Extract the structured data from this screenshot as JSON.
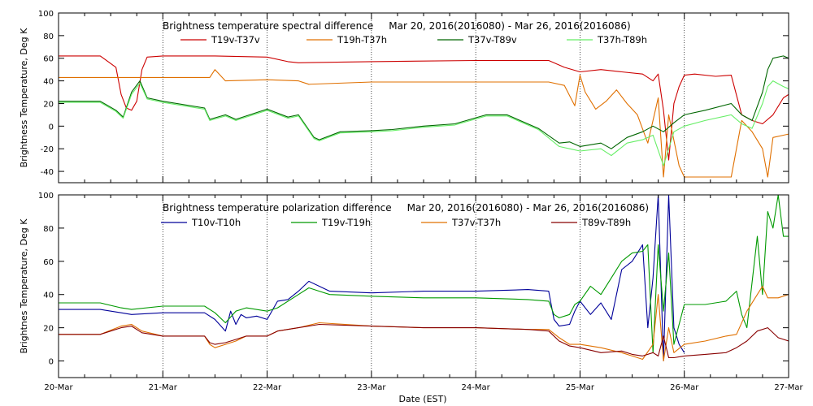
{
  "xlabel": "Date (EST)",
  "x_ticks": [
    "20-Mar",
    "21-Mar",
    "22-Mar",
    "23-Mar",
    "24-Mar",
    "25-Mar",
    "26-Mar",
    "27-Mar"
  ],
  "chart_data": [
    {
      "type": "line",
      "title": "Brightness temperature spectral difference     Mar 20, 2016(2016080) - Mar 26, 2016(2016086)",
      "xlabel": "",
      "ylabel": "Brightness Temperature, Deg K",
      "xlim": [
        0,
        7
      ],
      "ylim": [
        -50,
        100
      ],
      "yticks": [
        -40,
        -20,
        0,
        20,
        40,
        60,
        80,
        100
      ],
      "grid_x": true,
      "legend": "top-center",
      "series": [
        {
          "name": "T19v-T37v",
          "color": "#cc0000",
          "x": [
            0,
            0.4,
            0.55,
            0.6,
            0.65,
            0.7,
            0.75,
            0.8,
            0.85,
            1.0,
            1.5,
            2.0,
            2.2,
            2.3,
            3.0,
            4.0,
            4.7,
            4.85,
            5.0,
            5.2,
            5.4,
            5.6,
            5.7,
            5.75,
            5.8,
            5.85,
            5.9,
            5.95,
            6.0,
            6.1,
            6.3,
            6.45,
            6.55,
            6.65,
            6.75,
            6.85,
            6.95,
            7.0
          ],
          "values": [
            62,
            62,
            52,
            28,
            16,
            14,
            22,
            50,
            61,
            62,
            62,
            61,
            57,
            56,
            57,
            58,
            58,
            52,
            48,
            50,
            48,
            46,
            40,
            46,
            14,
            -30,
            20,
            35,
            45,
            46,
            44,
            45,
            10,
            5,
            2,
            10,
            25,
            28
          ]
        },
        {
          "name": "T19h-T37h",
          "color": "#e07000",
          "x": [
            0,
            0.55,
            1.0,
            1.45,
            1.5,
            1.6,
            2.0,
            2.3,
            2.4,
            3.0,
            4.0,
            4.7,
            4.85,
            4.95,
            5.0,
            5.05,
            5.15,
            5.25,
            5.35,
            5.45,
            5.55,
            5.65,
            5.75,
            5.8,
            5.85,
            5.95,
            6.0,
            6.2,
            6.45,
            6.55,
            6.65,
            6.75,
            6.8,
            6.85,
            6.95,
            7.0
          ],
          "values": [
            43,
            43,
            43,
            43,
            50,
            40,
            41,
            40,
            37,
            39,
            39,
            39,
            36,
            18,
            45,
            30,
            15,
            22,
            32,
            20,
            10,
            -15,
            25,
            -45,
            10,
            -35,
            -45,
            -45,
            -45,
            5,
            -5,
            -20,
            -45,
            -10,
            -8,
            -7
          ]
        },
        {
          "name": "T37v-T89v",
          "color": "#006600",
          "x": [
            0,
            0.4,
            0.55,
            0.62,
            0.7,
            0.78,
            0.85,
            1.0,
            1.4,
            1.45,
            1.6,
            1.7,
            2.0,
            2.2,
            2.3,
            2.45,
            2.5,
            2.7,
            3.0,
            3.2,
            3.5,
            3.8,
            4.1,
            4.3,
            4.6,
            4.8,
            4.9,
            5.0,
            5.2,
            5.3,
            5.45,
            5.6,
            5.7,
            5.8,
            5.9,
            6.0,
            6.2,
            6.45,
            6.55,
            6.65,
            6.75,
            6.8,
            6.85,
            6.95,
            7.0
          ],
          "values": [
            22,
            22,
            14,
            8,
            30,
            40,
            25,
            22,
            16,
            6,
            10,
            6,
            15,
            8,
            10,
            -10,
            -12,
            -5,
            -4,
            -3,
            0,
            2,
            10,
            10,
            -2,
            -15,
            -14,
            -18,
            -15,
            -20,
            -10,
            -5,
            0,
            -5,
            3,
            10,
            14,
            20,
            10,
            5,
            30,
            50,
            60,
            62,
            60
          ]
        },
        {
          "name": "T37h-T89h",
          "color": "#66ee66",
          "x": [
            0,
            0.4,
            0.55,
            0.62,
            0.7,
            0.78,
            0.85,
            1.0,
            1.4,
            1.45,
            1.6,
            1.7,
            2.0,
            2.2,
            2.3,
            2.45,
            2.5,
            2.7,
            3.0,
            3.2,
            3.5,
            3.8,
            4.1,
            4.3,
            4.6,
            4.8,
            4.9,
            5.0,
            5.2,
            5.3,
            5.45,
            5.6,
            5.7,
            5.8,
            5.9,
            6.0,
            6.2,
            6.45,
            6.55,
            6.65,
            6.75,
            6.8,
            6.85,
            6.95,
            7.0
          ],
          "values": [
            21,
            21,
            13,
            7,
            28,
            38,
            24,
            21,
            15,
            5,
            9,
            5,
            14,
            7,
            9,
            -11,
            -13,
            -6,
            -5,
            -4,
            -1,
            1,
            9,
            9,
            -3,
            -18,
            -20,
            -22,
            -20,
            -26,
            -15,
            -12,
            -8,
            -35,
            -5,
            0,
            5,
            10,
            2,
            -2,
            20,
            35,
            40,
            35,
            33
          ]
        }
      ]
    },
    {
      "type": "line",
      "title": "Brightness temperature polarization difference     Mar 20, 2016(2016080) - Mar 26, 2016(2016086)",
      "xlabel": "Date (EST)",
      "ylabel": "Brightnes Temperature, Deg K",
      "xlim": [
        0,
        7
      ],
      "ylim": [
        -10,
        100
      ],
      "yticks": [
        0,
        20,
        40,
        60,
        80,
        100
      ],
      "grid_x": true,
      "legend": "top-center",
      "series": [
        {
          "name": "T10v-T10h",
          "color": "#000099",
          "x": [
            0,
            0.4,
            0.6,
            0.7,
            1.0,
            1.4,
            1.5,
            1.6,
            1.65,
            1.7,
            1.75,
            1.8,
            1.9,
            2.0,
            2.1,
            2.2,
            2.3,
            2.4,
            2.5,
            2.6,
            3.0,
            3.5,
            4.0,
            4.5,
            4.7,
            4.75,
            4.8,
            4.9,
            4.95,
            5.0,
            5.1,
            5.2,
            5.3,
            5.4,
            5.5,
            5.55,
            5.6,
            5.65,
            5.7,
            5.75,
            5.8,
            5.85,
            5.9,
            5.95,
            6.0
          ],
          "values": [
            31,
            31,
            29,
            28,
            29,
            29,
            25,
            18,
            30,
            22,
            28,
            26,
            27,
            25,
            36,
            37,
            42,
            48,
            45,
            42,
            41,
            42,
            42,
            43,
            42,
            25,
            21,
            22,
            30,
            36,
            28,
            35,
            25,
            55,
            60,
            65,
            70,
            20,
            50,
            100,
            0,
            100,
            20,
            10,
            5
          ]
        },
        {
          "name": "T19v-T19h",
          "color": "#009900",
          "x": [
            0,
            0.4,
            0.6,
            0.7,
            1.0,
            1.4,
            1.5,
            1.6,
            1.7,
            1.8,
            2.0,
            2.1,
            2.3,
            2.4,
            2.5,
            2.6,
            3.0,
            3.5,
            4.0,
            4.5,
            4.7,
            4.75,
            4.8,
            4.9,
            4.95,
            5.0,
            5.1,
            5.2,
            5.3,
            5.4,
            5.5,
            5.6,
            5.65,
            5.7,
            5.75,
            5.8,
            5.85,
            5.9,
            6.0,
            6.2,
            6.4,
            6.5,
            6.55,
            6.6,
            6.7,
            6.75,
            6.8,
            6.85,
            6.9,
            6.95,
            7.0
          ],
          "values": [
            35,
            35,
            32,
            31,
            33,
            33,
            29,
            23,
            30,
            32,
            30,
            32,
            40,
            44,
            42,
            40,
            39,
            38,
            38,
            37,
            36,
            28,
            26,
            28,
            34,
            36,
            45,
            40,
            50,
            60,
            65,
            66,
            70,
            5,
            70,
            30,
            65,
            10,
            34,
            34,
            36,
            42,
            28,
            20,
            75,
            40,
            90,
            80,
            100,
            75,
            75
          ]
        },
        {
          "name": "T37v-T37h",
          "color": "#e07000",
          "x": [
            0,
            0.4,
            0.6,
            0.7,
            0.8,
            1.0,
            1.4,
            1.45,
            1.5,
            1.6,
            1.7,
            1.8,
            2.0,
            2.1,
            2.3,
            2.5,
            3.0,
            3.5,
            4.0,
            4.5,
            4.7,
            4.8,
            4.9,
            5.0,
            5.2,
            5.4,
            5.5,
            5.6,
            5.7,
            5.75,
            5.8,
            5.85,
            5.9,
            6.0,
            6.2,
            6.4,
            6.5,
            6.6,
            6.7,
            6.75,
            6.8,
            6.9,
            7.0
          ],
          "values": [
            16,
            16,
            21,
            22,
            18,
            15,
            15,
            10,
            8,
            10,
            12,
            15,
            15,
            18,
            20,
            23,
            21,
            20,
            20,
            19,
            19,
            14,
            10,
            10,
            8,
            5,
            3,
            1,
            10,
            40,
            0,
            20,
            5,
            10,
            12,
            15,
            16,
            30,
            40,
            45,
            38,
            38,
            40
          ]
        },
        {
          "name": "T89v-T89h",
          "color": "#880000",
          "x": [
            0,
            0.4,
            0.6,
            0.7,
            0.8,
            1.0,
            1.4,
            1.45,
            1.5,
            1.6,
            1.7,
            1.8,
            2.0,
            2.1,
            2.3,
            2.5,
            3.0,
            3.5,
            4.0,
            4.5,
            4.7,
            4.8,
            4.9,
            5.0,
            5.2,
            5.4,
            5.5,
            5.6,
            5.7,
            5.75,
            5.8,
            5.85,
            5.9,
            6.0,
            6.2,
            6.4,
            6.5,
            6.6,
            6.7,
            6.8,
            6.9,
            7.0
          ],
          "values": [
            16,
            16,
            20,
            21,
            17,
            15,
            15,
            11,
            10,
            11,
            13,
            15,
            15,
            18,
            20,
            22,
            21,
            20,
            20,
            19,
            18,
            12,
            9,
            8,
            5,
            6,
            4,
            3,
            5,
            3,
            15,
            2,
            2,
            3,
            4,
            5,
            8,
            12,
            18,
            20,
            14,
            12
          ]
        }
      ]
    }
  ]
}
